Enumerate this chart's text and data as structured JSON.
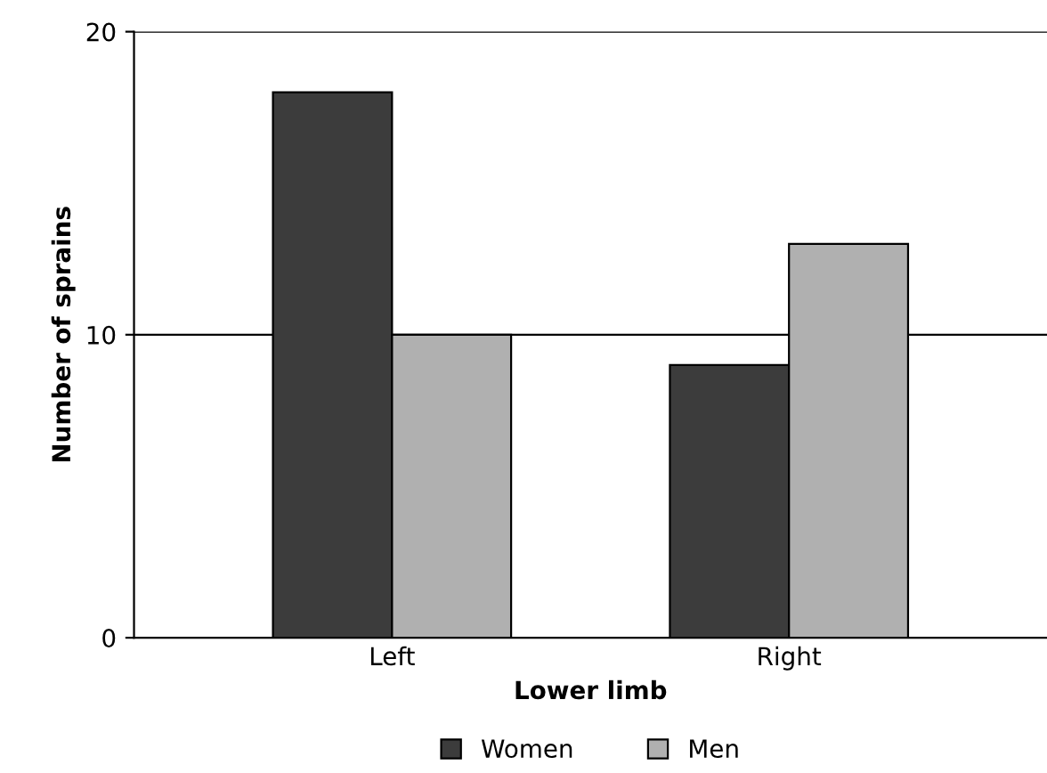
{
  "chart_data": {
    "type": "bar",
    "xlabel": "Lower limb",
    "ylabel": "Number of sprains",
    "categories": [
      "Left",
      "Right"
    ],
    "series": [
      {
        "name": "Women",
        "color": "#3c3c3c",
        "values": [
          18,
          9
        ]
      },
      {
        "name": "Men",
        "color": "#b0b0b0",
        "values": [
          10,
          13
        ]
      }
    ],
    "ylim": [
      0,
      20
    ],
    "yticks": [
      0,
      10,
      20
    ],
    "grid": "y",
    "legend": "bottom"
  }
}
